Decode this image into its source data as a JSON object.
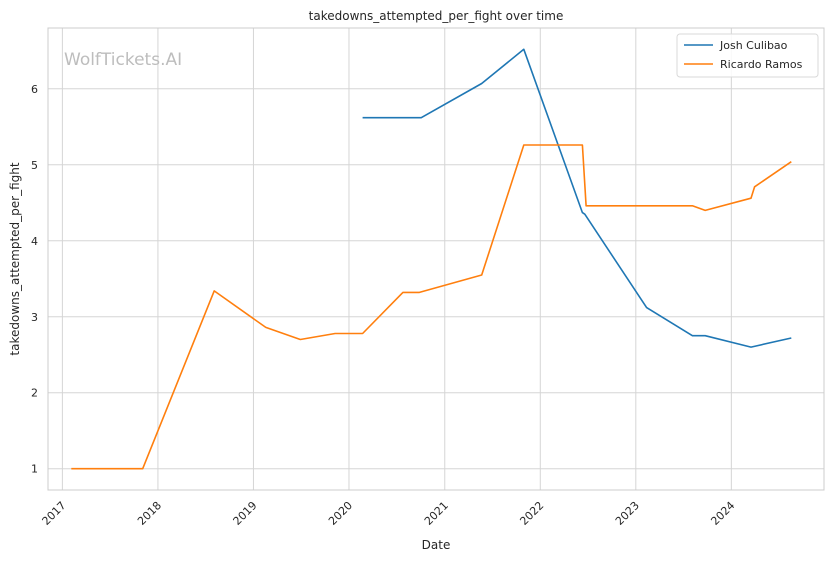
{
  "chart_data": {
    "type": "line",
    "title": "takedowns_attempted_per_fight over time",
    "xlabel": "Date",
    "ylabel": "takedowns_attempted_per_fight",
    "watermark": "WolfTickets.AI",
    "x_ticks": [
      "2017",
      "2018",
      "2019",
      "2020",
      "2021",
      "2022",
      "2023",
      "2024"
    ],
    "y_ticks": [
      "1",
      "2",
      "3",
      "4",
      "5",
      "6"
    ],
    "xlim": [
      "2016-11-07",
      "2024-12-20"
    ],
    "ylim": [
      0.72,
      6.8
    ],
    "grid": true,
    "legend_position": "top-right",
    "series": [
      {
        "name": "Josh Culibao",
        "color": "#1f77b4",
        "points": [
          [
            "2020-02-22",
            5.62
          ],
          [
            "2020-10-03",
            5.62
          ],
          [
            "2021-05-22",
            6.07
          ],
          [
            "2021-10-30",
            6.52
          ],
          [
            "2022-06-11",
            4.37
          ],
          [
            "2022-06-20",
            4.35
          ],
          [
            "2023-02-11",
            3.12
          ],
          [
            "2023-08-05",
            2.75
          ],
          [
            "2023-09-23",
            2.75
          ],
          [
            "2024-03-16",
            2.6
          ],
          [
            "2024-08-17",
            2.72
          ]
        ]
      },
      {
        "name": "Ricardo Ramos",
        "color": "#ff7f0e",
        "points": [
          [
            "2017-02-04",
            1.0
          ],
          [
            "2017-11-04",
            1.0
          ],
          [
            "2018-08-04",
            3.34
          ],
          [
            "2019-02-17",
            2.86
          ],
          [
            "2019-06-29",
            2.7
          ],
          [
            "2019-11-09",
            2.78
          ],
          [
            "2020-02-22",
            2.78
          ],
          [
            "2020-07-25",
            3.32
          ],
          [
            "2020-09-26",
            3.32
          ],
          [
            "2021-05-22",
            3.55
          ],
          [
            "2021-10-30",
            5.26
          ],
          [
            "2022-06-11",
            5.26
          ],
          [
            "2022-06-25",
            4.46
          ],
          [
            "2023-08-05",
            4.46
          ],
          [
            "2023-09-23",
            4.4
          ],
          [
            "2024-03-16",
            4.56
          ],
          [
            "2024-03-30",
            4.71
          ],
          [
            "2024-08-17",
            5.04
          ]
        ]
      }
    ]
  }
}
